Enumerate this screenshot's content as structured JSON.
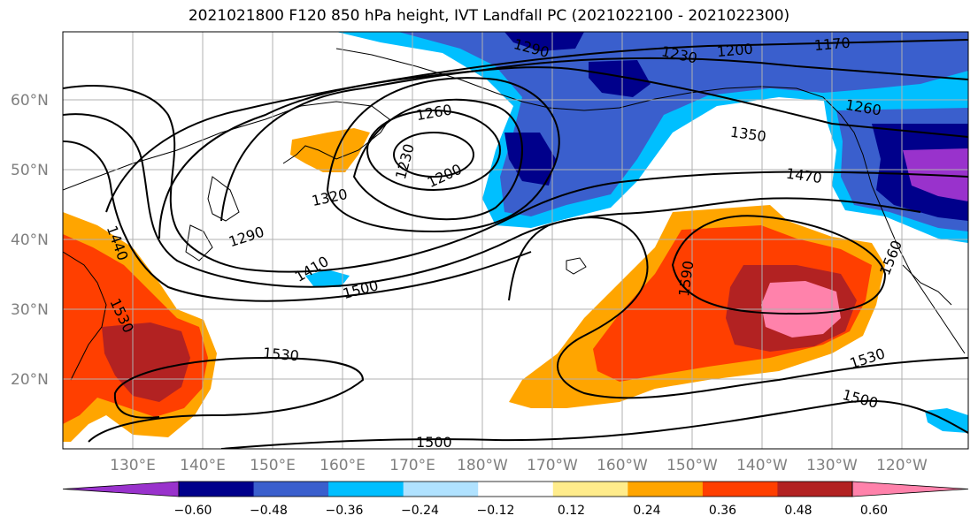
{
  "title": "2021021800 F120 850 hPa height, IVT Landfall PC (2021022100 - 2021022300)",
  "lat_labels": [
    "60°N",
    "50°N",
    "40°N",
    "30°N",
    "20°N"
  ],
  "lon_labels": [
    "130°E",
    "140°E",
    "150°E",
    "160°E",
    "170°E",
    "180°W",
    "170°W",
    "160°W",
    "150°W",
    "140°W",
    "130°W",
    "120°W"
  ],
  "colorbar": {
    "ticks": [
      "−0.60",
      "−0.48",
      "−0.36",
      "−0.24",
      "−0.12",
      "0.12",
      "0.24",
      "0.36",
      "0.48",
      "0.60"
    ],
    "colors": [
      "#9932cc",
      "#00008b",
      "#3a5fcd",
      "#00bfff",
      "#b0e2ff",
      "#ffffff",
      "#ffec8b",
      "#ffa500",
      "#ff3f00",
      "#b22222",
      "#ff82ab"
    ]
  },
  "contour_labels": [
    "1290",
    "1230",
    "1200",
    "1170",
    "1260",
    "1350",
    "1470",
    "1230",
    "1200",
    "1260",
    "1320",
    "1290",
    "1410",
    "1500",
    "1440",
    "1530",
    "1590",
    "1560",
    "1530",
    "1530",
    "1500",
    "1500"
  ]
}
